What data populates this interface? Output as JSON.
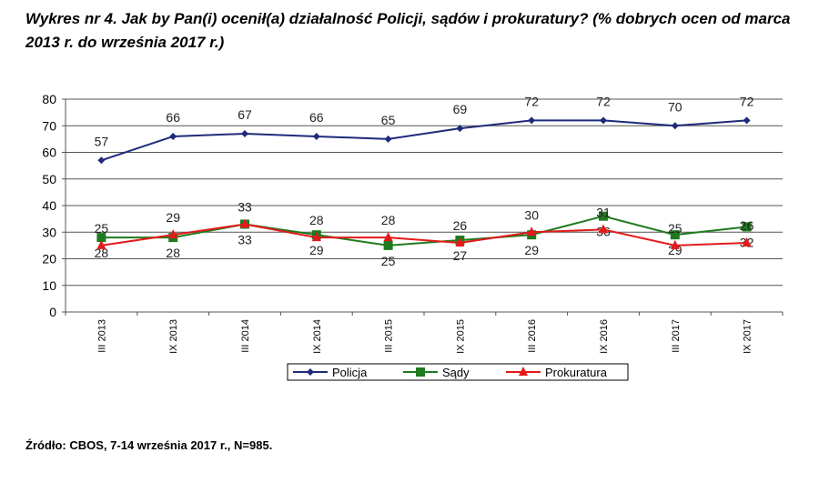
{
  "title": "Wykres nr 4. Jak by Pan(i) ocenił(a) działalność Policji, sądów i prokuratury? (% dobrych ocen od marca 2013  r. do września 2017 r.)",
  "source": "Źródło: CBOS, 7-14 września 2017 r., N=985.",
  "chart_data": {
    "type": "line",
    "categories": [
      "III 2013",
      "IX 2013",
      "III 2014",
      "IX 2014",
      "III 2015",
      "IX 2015",
      "III 2016",
      "IX 2016",
      "III 2017",
      "IX 2017"
    ],
    "ylim": [
      0,
      80
    ],
    "yticks": [
      0,
      10,
      20,
      30,
      40,
      50,
      60,
      70,
      80
    ],
    "grid": true,
    "legend": "bottom",
    "series": [
      {
        "name": "Policja",
        "color": "#1f2a7a",
        "marker": "diamond",
        "values": [
          57,
          66,
          67,
          66,
          65,
          69,
          72,
          72,
          70,
          72
        ]
      },
      {
        "name": "Sądy",
        "color": "#1e7b1e",
        "marker": "square",
        "values": [
          28,
          28,
          33,
          29,
          25,
          27,
          29,
          36,
          29,
          32
        ]
      },
      {
        "name": "Prokuratura",
        "color": "#e31a1a",
        "marker": "triangle",
        "values": [
          25,
          29,
          33,
          28,
          28,
          26,
          30,
          31,
          25,
          26
        ]
      }
    ]
  }
}
